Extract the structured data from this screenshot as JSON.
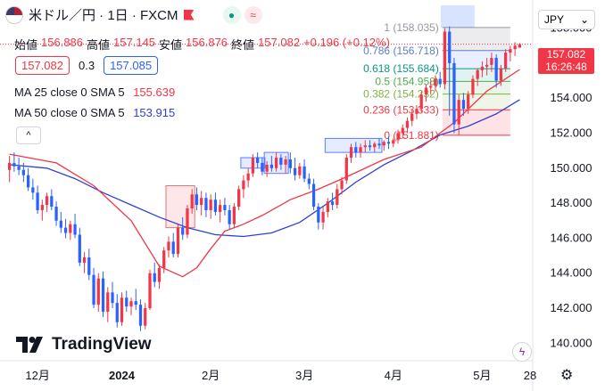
{
  "header": {
    "symbol": "米ドル／円 · 1日 · FXCM",
    "icons": [
      "us-flag-icon",
      "red-flag-icon",
      "dot-icon",
      "wave-icon"
    ]
  },
  "ohlc": {
    "open_label": "始値",
    "open": "156.886",
    "high_label": "高値",
    "high": "157.145",
    "low_label": "安値",
    "low": "156.876",
    "close_label": "終値",
    "close": "157.082",
    "change": "+0.196 (+0.12%)"
  },
  "trade_panel": {
    "sell": "157.082",
    "spread": "0.3",
    "buy": "157.085"
  },
  "indicators": [
    {
      "label": "MA 25 close 0 SMA 5",
      "value": "155.639",
      "color": "#f23645"
    },
    {
      "label": "MA 50 close 0 SMA 5",
      "value": "153.915",
      "color": "#3040d0"
    }
  ],
  "collapse_button": "^",
  "currency_selector": {
    "value": "JPY"
  },
  "price_tag": {
    "price": "157.082",
    "countdown": "16:26:48"
  },
  "logo_text": "TradingView",
  "colors": {
    "up": "#f23645",
    "down": "#2962ff",
    "ma25": "#f23645",
    "ma50": "#3040d0",
    "accent": "#f23645"
  },
  "chart_data": {
    "type": "candlestick",
    "ylim": [
      139,
      159.2
    ],
    "y_ticks": [
      "140.000",
      "142.000",
      "144.000",
      "146.000",
      "148.000",
      "150.000",
      "152.000",
      "154.000",
      "156.000",
      "158.000"
    ],
    "x_ticks": [
      "12月",
      "2024",
      "2月",
      "3月",
      "4月",
      "5月",
      "28"
    ],
    "fibonacci": [
      {
        "ratio": "1",
        "price": 158.035,
        "label": "1 (158.035)"
      },
      {
        "ratio": "0.786",
        "price": 156.718,
        "label": "0.786 (156.718)"
      },
      {
        "ratio": "0.618",
        "price": 155.684,
        "label": "0.618 (155.684)"
      },
      {
        "ratio": "0.5",
        "price": 154.958,
        "label": "0.5 (154.958)"
      },
      {
        "ratio": "0.382",
        "price": 154.232,
        "label": "0.382 (154.232)"
      },
      {
        "ratio": "0.236",
        "price": 153.333,
        "label": "0.236 (153.333)"
      },
      {
        "ratio": "0",
        "price": 151.881,
        "label": "0 (151.881)"
      }
    ],
    "candles": [
      [
        149.9,
        150.7,
        149.2,
        150.3
      ],
      [
        150.3,
        150.9,
        149.8,
        150.1
      ],
      [
        150.1,
        150.6,
        149.6,
        149.9
      ],
      [
        149.9,
        150.3,
        149.2,
        149.6
      ],
      [
        149.6,
        150.0,
        148.7,
        148.9
      ],
      [
        148.9,
        149.4,
        148.2,
        148.6
      ],
      [
        148.6,
        149.0,
        147.4,
        147.6
      ],
      [
        147.6,
        148.2,
        147.0,
        147.9
      ],
      [
        147.9,
        148.6,
        147.5,
        148.4
      ],
      [
        148.4,
        148.8,
        147.6,
        147.8
      ],
      [
        147.8,
        148.1,
        146.7,
        147.0
      ],
      [
        147.0,
        147.5,
        146.3,
        146.6
      ],
      [
        146.6,
        147.1,
        146.0,
        146.3
      ],
      [
        146.3,
        147.0,
        145.9,
        146.8
      ],
      [
        146.8,
        147.4,
        146.0,
        146.2
      ],
      [
        146.2,
        146.6,
        144.4,
        144.6
      ],
      [
        144.6,
        145.2,
        144.0,
        144.9
      ],
      [
        144.9,
        145.4,
        143.6,
        143.9
      ],
      [
        143.9,
        144.3,
        142.0,
        142.2
      ],
      [
        142.2,
        144.0,
        141.8,
        143.7
      ],
      [
        143.7,
        144.1,
        141.5,
        141.8
      ],
      [
        141.8,
        143.2,
        141.2,
        142.9
      ],
      [
        142.9,
        143.5,
        142.0,
        142.3
      ],
      [
        142.3,
        142.8,
        140.9,
        141.2
      ],
      [
        141.2,
        142.9,
        141.0,
        142.6
      ],
      [
        142.6,
        143.0,
        141.8,
        142.1
      ],
      [
        142.1,
        142.6,
        141.6,
        142.4
      ],
      [
        142.4,
        143.1,
        141.9,
        142.2
      ],
      [
        142.2,
        142.5,
        140.7,
        141.0
      ],
      [
        141.0,
        142.3,
        140.8,
        142.0
      ],
      [
        142.0,
        144.2,
        141.9,
        144.0
      ],
      [
        144.0,
        144.6,
        143.2,
        143.5
      ],
      [
        143.5,
        144.5,
        143.1,
        144.3
      ],
      [
        144.3,
        145.5,
        144.0,
        145.3
      ],
      [
        145.3,
        146.1,
        144.9,
        145.8
      ],
      [
        145.8,
        146.3,
        144.9,
        145.1
      ],
      [
        145.1,
        146.8,
        144.9,
        146.6
      ],
      [
        146.6,
        147.2,
        145.9,
        146.2
      ],
      [
        146.2,
        147.9,
        146.0,
        147.7
      ],
      [
        147.7,
        148.8,
        147.4,
        148.5
      ],
      [
        148.5,
        148.9,
        147.6,
        147.9
      ],
      [
        147.9,
        148.7,
        147.3,
        148.3
      ],
      [
        148.3,
        148.6,
        147.2,
        147.6
      ],
      [
        147.6,
        148.5,
        147.1,
        148.2
      ],
      [
        148.2,
        148.6,
        147.3,
        147.5
      ],
      [
        147.5,
        148.2,
        146.9,
        147.9
      ],
      [
        147.9,
        148.3,
        147.3,
        147.6
      ],
      [
        147.6,
        147.9,
        146.5,
        146.8
      ],
      [
        146.8,
        148.0,
        146.6,
        147.8
      ],
      [
        147.8,
        149.0,
        147.6,
        148.8
      ],
      [
        148.8,
        149.6,
        148.3,
        149.3
      ],
      [
        149.3,
        150.0,
        148.9,
        149.7
      ],
      [
        149.7,
        150.8,
        149.5,
        150.6
      ],
      [
        150.6,
        150.9,
        150.0,
        150.3
      ],
      [
        150.3,
        150.6,
        149.6,
        149.8
      ],
      [
        149.8,
        150.4,
        149.5,
        150.2
      ],
      [
        150.2,
        150.7,
        149.8,
        150.0
      ],
      [
        150.0,
        150.9,
        149.8,
        150.6
      ],
      [
        150.6,
        150.8,
        149.9,
        150.2
      ],
      [
        150.2,
        150.7,
        149.7,
        150.5
      ],
      [
        150.5,
        150.9,
        149.7,
        150.0
      ],
      [
        150.0,
        150.6,
        149.3,
        149.6
      ],
      [
        149.6,
        150.3,
        149.4,
        150.1
      ],
      [
        150.1,
        150.5,
        149.2,
        149.4
      ],
      [
        149.4,
        149.7,
        148.8,
        149.1
      ],
      [
        149.1,
        149.4,
        147.6,
        147.8
      ],
      [
        147.8,
        148.0,
        146.5,
        146.9
      ],
      [
        146.9,
        147.8,
        146.5,
        147.5
      ],
      [
        147.5,
        148.3,
        147.2,
        148.1
      ],
      [
        148.1,
        148.6,
        147.6,
        147.9
      ],
      [
        147.9,
        149.1,
        147.7,
        148.8
      ],
      [
        148.8,
        149.5,
        148.5,
        149.3
      ],
      [
        149.3,
        150.8,
        149.1,
        150.6
      ],
      [
        150.6,
        151.4,
        150.3,
        151.2
      ],
      [
        151.2,
        151.5,
        150.6,
        150.9
      ],
      [
        150.9,
        151.4,
        150.6,
        151.2
      ],
      [
        151.2,
        151.6,
        150.9,
        151.3
      ],
      [
        151.3,
        151.6,
        151.0,
        151.2
      ],
      [
        151.2,
        151.5,
        150.9,
        151.4
      ],
      [
        151.4,
        151.7,
        151.1,
        151.3
      ],
      [
        151.3,
        151.6,
        151.0,
        151.5
      ],
      [
        151.5,
        151.8,
        151.1,
        151.4
      ],
      [
        151.4,
        151.7,
        151.2,
        151.6
      ],
      [
        151.6,
        152.2,
        151.4,
        152.0
      ],
      [
        152.0,
        152.5,
        151.7,
        152.3
      ],
      [
        152.3,
        152.9,
        152.0,
        152.7
      ],
      [
        152.7,
        153.3,
        152.4,
        153.1
      ],
      [
        153.1,
        153.6,
        152.8,
        153.4
      ],
      [
        153.4,
        154.4,
        153.2,
        154.2
      ],
      [
        154.2,
        154.8,
        153.8,
        154.6
      ],
      [
        154.6,
        155.0,
        154.2,
        154.7
      ],
      [
        154.7,
        155.3,
        154.4,
        155.1
      ],
      [
        155.1,
        155.5,
        154.6,
        154.8
      ],
      [
        154.8,
        158.0,
        154.5,
        157.8
      ],
      [
        157.8,
        158.1,
        153.0,
        156.0
      ],
      [
        156.0,
        156.3,
        152.0,
        152.5
      ],
      [
        152.5,
        154.2,
        151.9,
        153.9
      ],
      [
        153.9,
        154.3,
        153.0,
        153.4
      ],
      [
        153.4,
        154.4,
        153.1,
        154.2
      ],
      [
        154.2,
        155.3,
        154.0,
        155.1
      ],
      [
        155.1,
        155.7,
        154.7,
        155.6
      ],
      [
        155.6,
        156.1,
        155.2,
        155.8
      ],
      [
        155.8,
        156.3,
        155.3,
        155.9
      ],
      [
        155.9,
        156.6,
        155.5,
        156.3
      ],
      [
        156.3,
        156.5,
        154.6,
        155.0
      ],
      [
        155.0,
        155.9,
        154.7,
        155.7
      ],
      [
        155.7,
        156.8,
        155.5,
        156.6
      ],
      [
        156.6,
        157.0,
        156.1,
        156.8
      ],
      [
        156.8,
        157.2,
        156.4,
        157.0
      ],
      [
        156.886,
        157.145,
        156.876,
        157.082
      ]
    ],
    "ma25": [
      [
        0,
        150.8
      ],
      [
        10,
        150.3
      ],
      [
        18,
        149.0
      ],
      [
        26,
        147.0
      ],
      [
        32,
        144.4
      ],
      [
        37,
        143.8
      ],
      [
        40,
        144.3
      ],
      [
        43,
        145.4
      ],
      [
        46,
        146.4
      ],
      [
        50,
        146.8
      ],
      [
        54,
        147.3
      ],
      [
        60,
        148.2
      ],
      [
        66,
        148.8
      ],
      [
        72,
        149.5
      ],
      [
        80,
        150.5
      ],
      [
        88,
        151.2
      ],
      [
        95,
        152.6
      ],
      [
        102,
        154.4
      ],
      [
        109,
        155.639
      ]
    ],
    "ma50": [
      [
        0,
        150.2
      ],
      [
        8,
        150.0
      ],
      [
        14,
        149.4
      ],
      [
        20,
        148.6
      ],
      [
        26,
        147.9
      ],
      [
        32,
        147.2
      ],
      [
        38,
        146.6
      ],
      [
        44,
        146.2
      ],
      [
        50,
        146.1
      ],
      [
        56,
        146.3
      ],
      [
        62,
        146.9
      ],
      [
        68,
        148.0
      ],
      [
        74,
        149.2
      ],
      [
        80,
        150.2
      ],
      [
        86,
        151.0
      ],
      [
        92,
        151.9
      ],
      [
        98,
        152.4
      ],
      [
        104,
        153.1
      ],
      [
        109,
        153.915
      ]
    ]
  }
}
